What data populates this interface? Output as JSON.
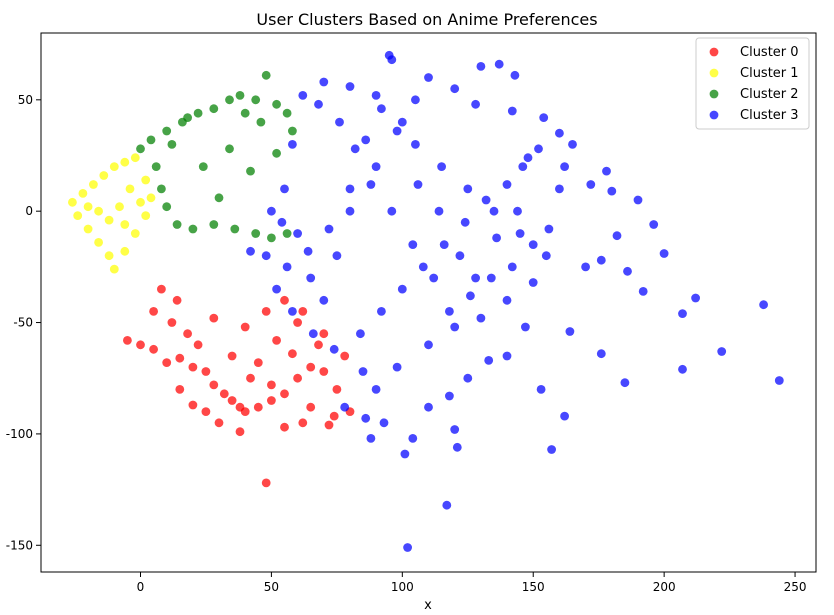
{
  "chart_data": {
    "type": "scatter",
    "title": "User Clusters Based on Anime Preferences",
    "xlabel": "x",
    "ylabel": "",
    "xlim": [
      -38,
      258
    ],
    "ylim": [
      -162,
      80
    ],
    "xticks": [
      0,
      50,
      100,
      150,
      200,
      250
    ],
    "yticks": [
      50,
      0,
      -50,
      -100,
      -150
    ],
    "grid": false,
    "legend_position": "top-right",
    "series": [
      {
        "name": "Cluster 0",
        "color": "#ff0000",
        "points": [
          [
            -5,
            -58
          ],
          [
            0,
            -60
          ],
          [
            5,
            -62
          ],
          [
            10,
            -68
          ],
          [
            15,
            -66
          ],
          [
            20,
            -70
          ],
          [
            25,
            -72
          ],
          [
            28,
            -78
          ],
          [
            32,
            -82
          ],
          [
            35,
            -85
          ],
          [
            38,
            -88
          ],
          [
            40,
            -90
          ],
          [
            45,
            -88
          ],
          [
            50,
            -85
          ],
          [
            55,
            -82
          ],
          [
            60,
            -75
          ],
          [
            65,
            -70
          ],
          [
            70,
            -72
          ],
          [
            75,
            -80
          ],
          [
            80,
            -90
          ],
          [
            30,
            -95
          ],
          [
            38,
            -99
          ],
          [
            48,
            -122
          ],
          [
            55,
            -97
          ],
          [
            62,
            -95
          ],
          [
            72,
            -96
          ],
          [
            20,
            -87
          ],
          [
            15,
            -80
          ],
          [
            25,
            -90
          ],
          [
            42,
            -75
          ],
          [
            58,
            -64
          ],
          [
            68,
            -60
          ],
          [
            5,
            -45
          ],
          [
            12,
            -50
          ],
          [
            18,
            -55
          ],
          [
            22,
            -60
          ],
          [
            35,
            -65
          ],
          [
            45,
            -68
          ],
          [
            52,
            -58
          ],
          [
            60,
            -50
          ],
          [
            8,
            -35
          ],
          [
            14,
            -40
          ],
          [
            28,
            -48
          ],
          [
            40,
            -52
          ],
          [
            48,
            -45
          ],
          [
            55,
            -40
          ],
          [
            62,
            -45
          ],
          [
            70,
            -55
          ],
          [
            78,
            -65
          ],
          [
            74,
            -92
          ],
          [
            65,
            -88
          ],
          [
            50,
            -78
          ]
        ]
      },
      {
        "name": "Cluster 1",
        "color": "#ffff00",
        "points": [
          [
            -26,
            4
          ],
          [
            -22,
            8
          ],
          [
            -18,
            12
          ],
          [
            -14,
            16
          ],
          [
            -10,
            20
          ],
          [
            -6,
            22
          ],
          [
            -2,
            24
          ],
          [
            -24,
            -2
          ],
          [
            -20,
            -8
          ],
          [
            -16,
            -14
          ],
          [
            -12,
            -20
          ],
          [
            -10,
            -26
          ],
          [
            -6,
            -18
          ],
          [
            -2,
            -10
          ],
          [
            2,
            -2
          ],
          [
            4,
            6
          ],
          [
            2,
            14
          ],
          [
            -4,
            10
          ],
          [
            -8,
            2
          ],
          [
            -12,
            -4
          ],
          [
            -16,
            0
          ],
          [
            -20,
            2
          ],
          [
            -6,
            -6
          ],
          [
            0,
            4
          ]
        ]
      },
      {
        "name": "Cluster 2",
        "color": "#008000",
        "points": [
          [
            0,
            28
          ],
          [
            4,
            32
          ],
          [
            10,
            36
          ],
          [
            16,
            40
          ],
          [
            22,
            44
          ],
          [
            28,
            46
          ],
          [
            34,
            50
          ],
          [
            38,
            52
          ],
          [
            44,
            50
          ],
          [
            48,
            61
          ],
          [
            52,
            48
          ],
          [
            56,
            44
          ],
          [
            58,
            36
          ],
          [
            6,
            20
          ],
          [
            8,
            10
          ],
          [
            10,
            2
          ],
          [
            14,
            -6
          ],
          [
            20,
            -8
          ],
          [
            28,
            -6
          ],
          [
            36,
            -8
          ],
          [
            44,
            -10
          ],
          [
            50,
            -12
          ],
          [
            56,
            -10
          ],
          [
            46,
            40
          ],
          [
            40,
            44
          ],
          [
            18,
            42
          ],
          [
            12,
            30
          ],
          [
            24,
            20
          ],
          [
            34,
            28
          ],
          [
            42,
            18
          ],
          [
            30,
            6
          ],
          [
            52,
            26
          ]
        ]
      },
      {
        "name": "Cluster 3",
        "color": "#0000ff",
        "points": [
          [
            95,
            70
          ],
          [
            96,
            68
          ],
          [
            110,
            60
          ],
          [
            130,
            65
          ],
          [
            137,
            66
          ],
          [
            143,
            61
          ],
          [
            120,
            55
          ],
          [
            105,
            50
          ],
          [
            90,
            52
          ],
          [
            80,
            56
          ],
          [
            70,
            58
          ],
          [
            128,
            48
          ],
          [
            142,
            45
          ],
          [
            154,
            42
          ],
          [
            160,
            35
          ],
          [
            165,
            30
          ],
          [
            148,
            24
          ],
          [
            162,
            20
          ],
          [
            178,
            18
          ],
          [
            172,
            12
          ],
          [
            180,
            9
          ],
          [
            190,
            5
          ],
          [
            196,
            -6
          ],
          [
            200,
            -19
          ],
          [
            182,
            -11
          ],
          [
            170,
            -25
          ],
          [
            176,
            -22
          ],
          [
            186,
            -27
          ],
          [
            192,
            -36
          ],
          [
            212,
            -39
          ],
          [
            207,
            -46
          ],
          [
            222,
            -63
          ],
          [
            238,
            -42
          ],
          [
            244,
            -76
          ],
          [
            207,
            -71
          ],
          [
            185,
            -77
          ],
          [
            176,
            -64
          ],
          [
            164,
            -54
          ],
          [
            162,
            -92
          ],
          [
            157,
            -107
          ],
          [
            153,
            -80
          ],
          [
            147,
            -52
          ],
          [
            140,
            -65
          ],
          [
            133,
            -67
          ],
          [
            125,
            -75
          ],
          [
            118,
            -83
          ],
          [
            110,
            -88
          ],
          [
            120,
            -98
          ],
          [
            121,
            -106
          ],
          [
            104,
            -102
          ],
          [
            101,
            -109
          ],
          [
            117,
            -132
          ],
          [
            102,
            -151
          ],
          [
            93,
            -95
          ],
          [
            86,
            -93
          ],
          [
            88,
            -102
          ],
          [
            90,
            -80
          ],
          [
            78,
            -88
          ],
          [
            85,
            -72
          ],
          [
            98,
            -70
          ],
          [
            110,
            -60
          ],
          [
            120,
            -52
          ],
          [
            130,
            -48
          ],
          [
            140,
            -40
          ],
          [
            150,
            -32
          ],
          [
            155,
            -20
          ],
          [
            145,
            -10
          ],
          [
            135,
            0
          ],
          [
            125,
            10
          ],
          [
            115,
            20
          ],
          [
            105,
            30
          ],
          [
            100,
            40
          ],
          [
            90,
            20
          ],
          [
            80,
            0
          ],
          [
            75,
            -20
          ],
          [
            70,
            -40
          ],
          [
            65,
            -30
          ],
          [
            60,
            -10
          ],
          [
            55,
            10
          ],
          [
            50,
            0
          ],
          [
            48,
            -20
          ],
          [
            52,
            -35
          ],
          [
            58,
            -45
          ],
          [
            66,
            -55
          ],
          [
            74,
            -62
          ],
          [
            84,
            -55
          ],
          [
            92,
            -45
          ],
          [
            100,
            -35
          ],
          [
            108,
            -25
          ],
          [
            116,
            -15
          ],
          [
            124,
            -5
          ],
          [
            132,
            5
          ],
          [
            140,
            12
          ],
          [
            146,
            20
          ],
          [
            152,
            28
          ],
          [
            160,
            10
          ],
          [
            156,
            -8
          ],
          [
            150,
            -15
          ],
          [
            142,
            -25
          ],
          [
            134,
            -30
          ],
          [
            126,
            -38
          ],
          [
            118,
            -45
          ],
          [
            112,
            -30
          ],
          [
            104,
            -15
          ],
          [
            96,
            0
          ],
          [
            88,
            12
          ],
          [
            82,
            28
          ],
          [
            76,
            40
          ],
          [
            68,
            48
          ],
          [
            62,
            52
          ],
          [
            58,
            30
          ],
          [
            54,
            -5
          ],
          [
            56,
            -25
          ],
          [
            64,
            -18
          ],
          [
            72,
            -8
          ],
          [
            80,
            10
          ],
          [
            86,
            32
          ],
          [
            92,
            46
          ],
          [
            98,
            36
          ],
          [
            106,
            12
          ],
          [
            114,
            0
          ],
          [
            122,
            -20
          ],
          [
            128,
            -30
          ],
          [
            136,
            -12
          ],
          [
            144,
            0
          ],
          [
            42,
            -18
          ]
        ]
      }
    ]
  }
}
